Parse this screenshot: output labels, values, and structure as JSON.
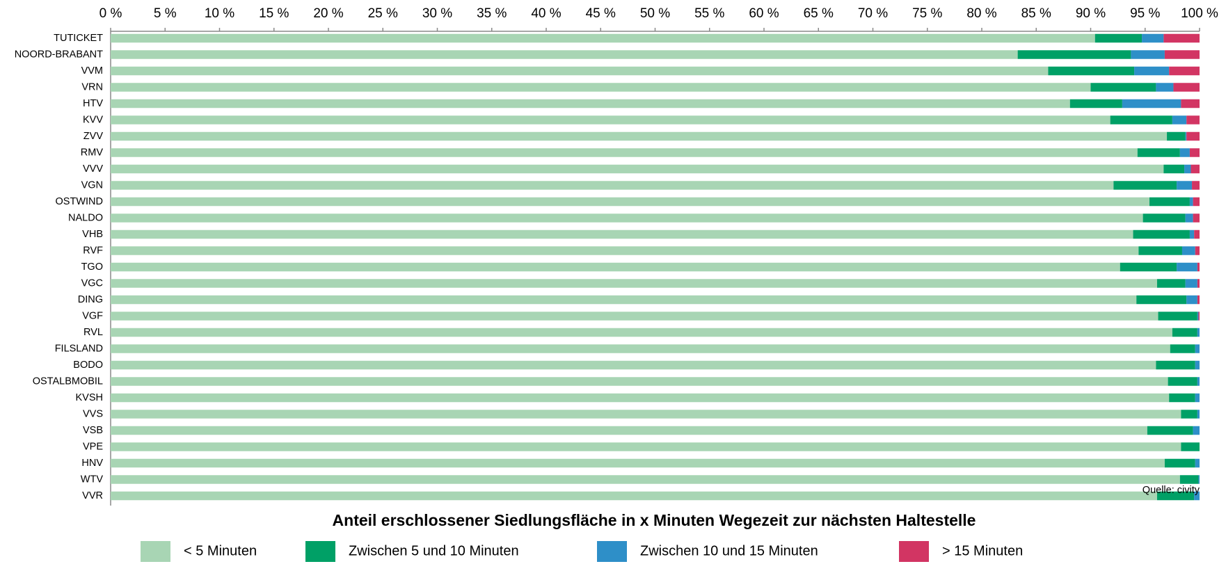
{
  "chart_data": {
    "type": "stacked_barh",
    "title": "Anteil erschlossener Siedlungsfläche in x Minuten Wegezeit zur nächsten Haltestelle",
    "annotation": "Quelle: civity",
    "categories": [
      "TUTICKET",
      "NOORD-BRABANT",
      "VVM",
      "VRN",
      "HTV",
      "KVV",
      "ZVV",
      "RMV",
      "VVV",
      "VGN",
      "OSTWIND",
      "NALDO",
      "VHB",
      "RVF",
      "TGO",
      "VGC",
      "DING",
      "VGF",
      "RVL",
      "FILSLAND",
      "BODO",
      "OSTALBMOBIL",
      "KVSH",
      "VVS",
      "VSB",
      "VPE",
      "HNV",
      "WTV",
      "VVR"
    ],
    "series": [
      {
        "name": "< 5 Minuten",
        "color": "#a8d5b4",
        "values": [
          90.4,
          83.3,
          86.1,
          90.0,
          88.1,
          91.8,
          97.0,
          94.3,
          96.7,
          92.1,
          95.4,
          94.8,
          93.9,
          94.4,
          92.7,
          96.1,
          94.2,
          96.2,
          97.5,
          97.3,
          96.0,
          97.1,
          97.2,
          98.3,
          95.2,
          98.3,
          96.8,
          98.2,
          96.1
        ]
      },
      {
        "name": "Zwischen 5 und 10 Minuten",
        "color": "#00a066",
        "values": [
          4.3,
          10.4,
          7.9,
          6.0,
          4.8,
          5.7,
          1.7,
          3.9,
          1.9,
          5.8,
          3.7,
          3.9,
          5.2,
          4.0,
          5.2,
          2.6,
          4.6,
          3.6,
          2.3,
          2.3,
          3.6,
          2.7,
          2.4,
          1.5,
          4.2,
          1.7,
          2.8,
          1.7,
          3.4
        ]
      },
      {
        "name": "Zwischen 10 und 15 Minuten",
        "color": "#2e8fc8",
        "values": [
          2.0,
          3.1,
          3.2,
          1.6,
          5.4,
          1.3,
          0.1,
          0.9,
          0.6,
          1.4,
          0.3,
          0.7,
          0.4,
          1.2,
          1.9,
          1.1,
          1.0,
          0.1,
          0.2,
          0.4,
          0.4,
          0.2,
          0.4,
          0.2,
          0.6,
          0,
          0.4,
          0.1,
          0.5
        ]
      },
      {
        "name": "> 15 Minuten",
        "color": "#d23563",
        "values": [
          3.3,
          3.2,
          2.8,
          2.4,
          1.7,
          1.2,
          1.2,
          0.9,
          0.8,
          0.7,
          0.6,
          0.6,
          0.5,
          0.4,
          0.2,
          0.2,
          0.2,
          0.1,
          0,
          0,
          0,
          0,
          0,
          0,
          0,
          0,
          0,
          0,
          0
        ]
      }
    ],
    "xlim": [
      0,
      100
    ],
    "xticks": [
      {
        "value": 0,
        "label": "0 %"
      },
      {
        "value": 5,
        "label": "5 %"
      },
      {
        "value": 10,
        "label": "10 %"
      },
      {
        "value": 15,
        "label": "15 %"
      },
      {
        "value": 20,
        "label": "20 %"
      },
      {
        "value": 25,
        "label": "25 %"
      },
      {
        "value": 30,
        "label": "30 %"
      },
      {
        "value": 35,
        "label": "35 %"
      },
      {
        "value": 40,
        "label": "40 %"
      },
      {
        "value": 45,
        "label": "45 %"
      },
      {
        "value": 50,
        "label": "50 %"
      },
      {
        "value": 55,
        "label": "55 %"
      },
      {
        "value": 60,
        "label": "60 %"
      },
      {
        "value": 65,
        "label": "65 %"
      },
      {
        "value": 70,
        "label": "70 %"
      },
      {
        "value": 75,
        "label": "75 %"
      },
      {
        "value": 80,
        "label": "80 %"
      },
      {
        "value": 85,
        "label": "85 %"
      },
      {
        "value": 90,
        "label": "90 %"
      },
      {
        "value": 95,
        "label": "95 %"
      },
      {
        "value": 100,
        "label": "100 %"
      }
    ],
    "grid": false,
    "legend": "bottom"
  }
}
